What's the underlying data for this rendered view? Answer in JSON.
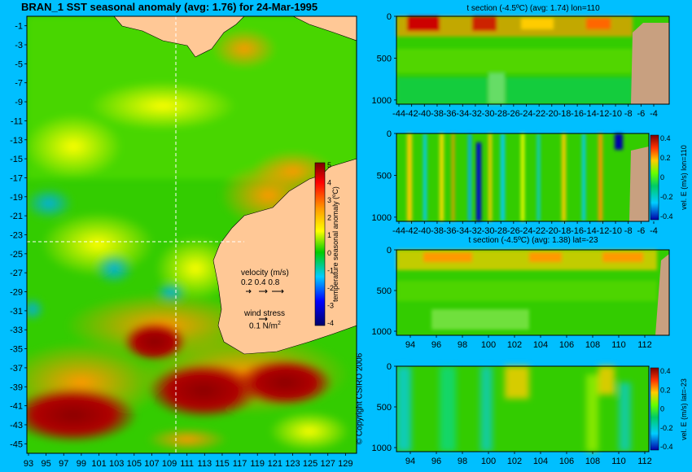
{
  "map": {
    "title": "BRAN_1  SST seasonal anomaly  (avg: 1.76) for 24-Mar-1995",
    "xticks": [
      "93",
      "95",
      "97",
      "99",
      "101",
      "103",
      "105",
      "107",
      "109",
      "111",
      "113",
      "115",
      "117",
      "119",
      "121",
      "123",
      "125",
      "127",
      "129"
    ],
    "yticks": [
      "-1",
      "-3",
      "-5",
      "-7",
      "-9",
      "-11",
      "-13",
      "-15",
      "-17",
      "-19",
      "-21",
      "-23",
      "-25",
      "-27",
      "-29",
      "-31",
      "-33",
      "-35",
      "-37",
      "-39",
      "-41",
      "-43",
      "-45"
    ],
    "colorbar": {
      "label": "temperature seasonal anomaly (ºC)",
      "ticks": [
        "5",
        "4",
        "3",
        "2",
        "1",
        "0",
        "-1",
        "-2",
        "-3",
        "-4"
      ]
    },
    "velocity_legend": {
      "title": "velocity (m/s)",
      "scale": "0.2 0.4 0.8"
    },
    "wind_legend": {
      "title": "wind stress",
      "value": "0.1 N/m",
      "sup": "2"
    },
    "copyright": "© Copyright CSIRO 2006"
  },
  "panels": {
    "p1": {
      "title": "t section (-4.5ºC) (avg: 1.74) lon=110",
      "yticks": [
        "0",
        "500",
        "1000"
      ],
      "xticks": [
        "-44",
        "-42",
        "-40",
        "-38",
        "-36",
        "-34",
        "-32",
        "-30",
        "-28",
        "-26",
        "-24",
        "-22",
        "-20",
        "-18",
        "-16",
        "-14",
        "-12",
        "-10",
        "-8",
        "-6",
        "-4"
      ]
    },
    "p2": {
      "title": "",
      "yticks": [
        "0",
        "500",
        "1000"
      ],
      "xticks": [
        "-44",
        "-42",
        "-40",
        "-38",
        "-36",
        "-34",
        "-32",
        "-30",
        "-28",
        "-26",
        "-24",
        "-22",
        "-20",
        "-18",
        "-16",
        "-14",
        "-12",
        "-10",
        "-8",
        "-6",
        "-4"
      ],
      "colorbar": {
        "label": "vel. E (m/s) lon=110",
        "ticks": [
          "0.4",
          "0.2",
          "0",
          "-0.2",
          "-0.4"
        ]
      }
    },
    "p3": {
      "title": "t section (-4.5ºC) (avg: 1.38) lat=-23",
      "yticks": [
        "0",
        "500",
        "1000"
      ],
      "xticks": [
        "94",
        "96",
        "98",
        "100",
        "102",
        "104",
        "106",
        "108",
        "110",
        "112"
      ]
    },
    "p4": {
      "title": "",
      "yticks": [
        "0",
        "500",
        "1000"
      ],
      "xticks": [
        "94",
        "96",
        "98",
        "100",
        "102",
        "104",
        "106",
        "108",
        "110",
        "112"
      ],
      "colorbar": {
        "label": "vel. E (m/s) lat=-23",
        "ticks": [
          "0.4",
          "0.2",
          "0",
          "-0.2",
          "-0.4"
        ]
      }
    }
  },
  "chart_data": [
    {
      "type": "heatmap",
      "title": "BRAN_1  SST seasonal anomaly  (avg: 1.76) for 24-Mar-1995",
      "xlim": [
        93,
        130
      ],
      "ylim": [
        -45,
        0
      ],
      "colorbar_range": [
        -4,
        5
      ],
      "colorbar_label": "temperature seasonal anomaly (ºC)"
    },
    {
      "type": "heatmap",
      "title": "t section (-4.5ºC) (avg: 1.74) lon=110",
      "xlim": [
        -45,
        -3
      ],
      "ylim": [
        1050,
        0
      ]
    },
    {
      "type": "heatmap",
      "title": "",
      "xlim": [
        -45,
        -3
      ],
      "ylim": [
        1050,
        0
      ],
      "colorbar_range": [
        -0.4,
        0.4
      ],
      "colorbar_label": "vel. E (m/s) lon=110"
    },
    {
      "type": "heatmap",
      "title": "t section (-4.5ºC) (avg: 1.38) lat=-23",
      "xlim": [
        93,
        114
      ],
      "ylim": [
        1050,
        0
      ]
    },
    {
      "type": "heatmap",
      "title": "",
      "xlim": [
        93,
        114
      ],
      "ylim": [
        1050,
        0
      ],
      "colorbar_range": [
        -0.4,
        0.4
      ],
      "colorbar_label": "vel. E (m/s) lat=-23"
    }
  ]
}
